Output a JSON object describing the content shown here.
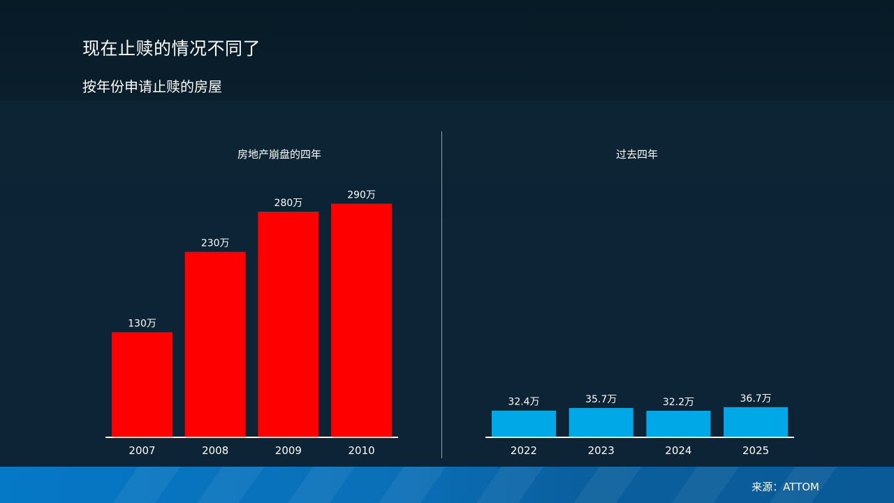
{
  "header": {
    "title": "现在止赎的情况不同了",
    "subtitle": "按年份申请止赎的房屋"
  },
  "chart_data": [
    {
      "type": "bar",
      "title": "房地产崩盘的四年",
      "categories": [
        "2007",
        "2008",
        "2009",
        "2010"
      ],
      "values": [
        1300000,
        2300000,
        2800000,
        2900000
      ],
      "data_labels": [
        "130万",
        "230万",
        "280万",
        "290万"
      ],
      "color": "#ff0000",
      "ylim": [
        0,
        3000000
      ],
      "grid": false
    },
    {
      "type": "bar",
      "title": "过去四年",
      "categories": [
        "2022",
        "2023",
        "2024",
        "2025"
      ],
      "values": [
        324000,
        357000,
        322000,
        367000
      ],
      "data_labels": [
        "32.4万",
        "35.7万",
        "32.2万",
        "36.7万"
      ],
      "color": "#00a8e8",
      "ylim": [
        0,
        3000000
      ],
      "grid": false
    }
  ],
  "footer": {
    "source": "来源：ATTOM"
  }
}
